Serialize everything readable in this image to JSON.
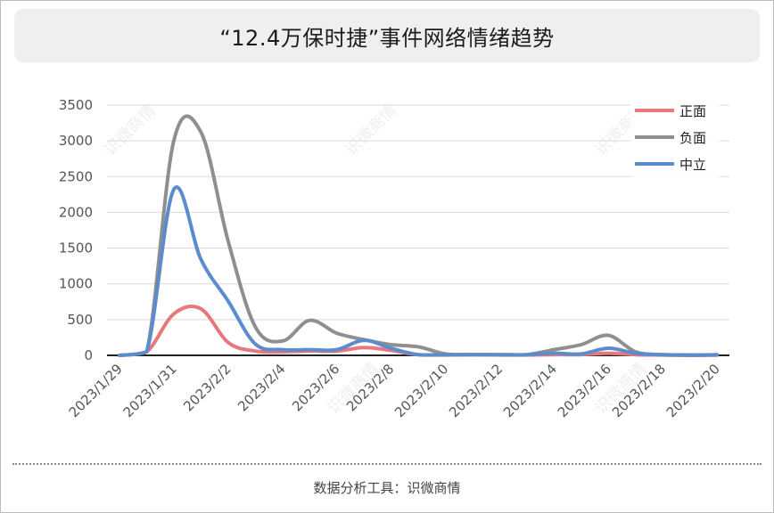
{
  "page": {
    "title": "“12.4万保时捷”事件网络情绪趋势",
    "footer": "数据分析工具：识微商情"
  },
  "chart_data": {
    "type": "line",
    "title": "“12.4万保时捷”事件网络情绪趋势",
    "x": [
      "2023/1/29",
      "2023/1/30",
      "2023/1/31",
      "2023/2/1",
      "2023/2/2",
      "2023/2/3",
      "2023/2/4",
      "2023/2/5",
      "2023/2/6",
      "2023/2/7",
      "2023/2/8",
      "2023/2/9",
      "2023/2/10",
      "2023/2/11",
      "2023/2/12",
      "2023/2/13",
      "2023/2/14",
      "2023/2/15",
      "2023/2/16",
      "2023/2/17",
      "2023/2/18",
      "2023/2/19",
      "2023/2/20"
    ],
    "x_tick_labels": [
      "2023/1/29",
      "2023/1/31",
      "2023/2/2",
      "2023/2/4",
      "2023/2/6",
      "2023/2/8",
      "2023/2/10",
      "2023/2/12",
      "2023/2/14",
      "2023/2/16",
      "2023/2/18",
      "2023/2/20"
    ],
    "series": [
      {
        "name": "正面",
        "color": "#e8787c",
        "values": [
          0,
          50,
          580,
          650,
          180,
          60,
          50,
          60,
          60,
          110,
          70,
          10,
          5,
          10,
          5,
          5,
          10,
          10,
          30,
          10,
          5,
          0,
          5
        ]
      },
      {
        "name": "负面",
        "color": "#8f8f8f",
        "values": [
          0,
          50,
          3000,
          3120,
          1600,
          400,
          200,
          490,
          310,
          220,
          150,
          120,
          20,
          10,
          10,
          10,
          80,
          150,
          280,
          50,
          10,
          5,
          10
        ]
      },
      {
        "name": "中立",
        "color": "#5b8ccd",
        "values": [
          0,
          50,
          2320,
          1340,
          760,
          160,
          80,
          80,
          80,
          210,
          100,
          10,
          10,
          10,
          10,
          10,
          30,
          20,
          100,
          30,
          10,
          5,
          5
        ]
      }
    ],
    "y_ticks": [
      0,
      500,
      1000,
      1500,
      2000,
      2500,
      3000,
      3500
    ],
    "ylim": [
      0,
      3500
    ],
    "grid": true,
    "legend": "top-right",
    "watermark": "识微商情"
  }
}
